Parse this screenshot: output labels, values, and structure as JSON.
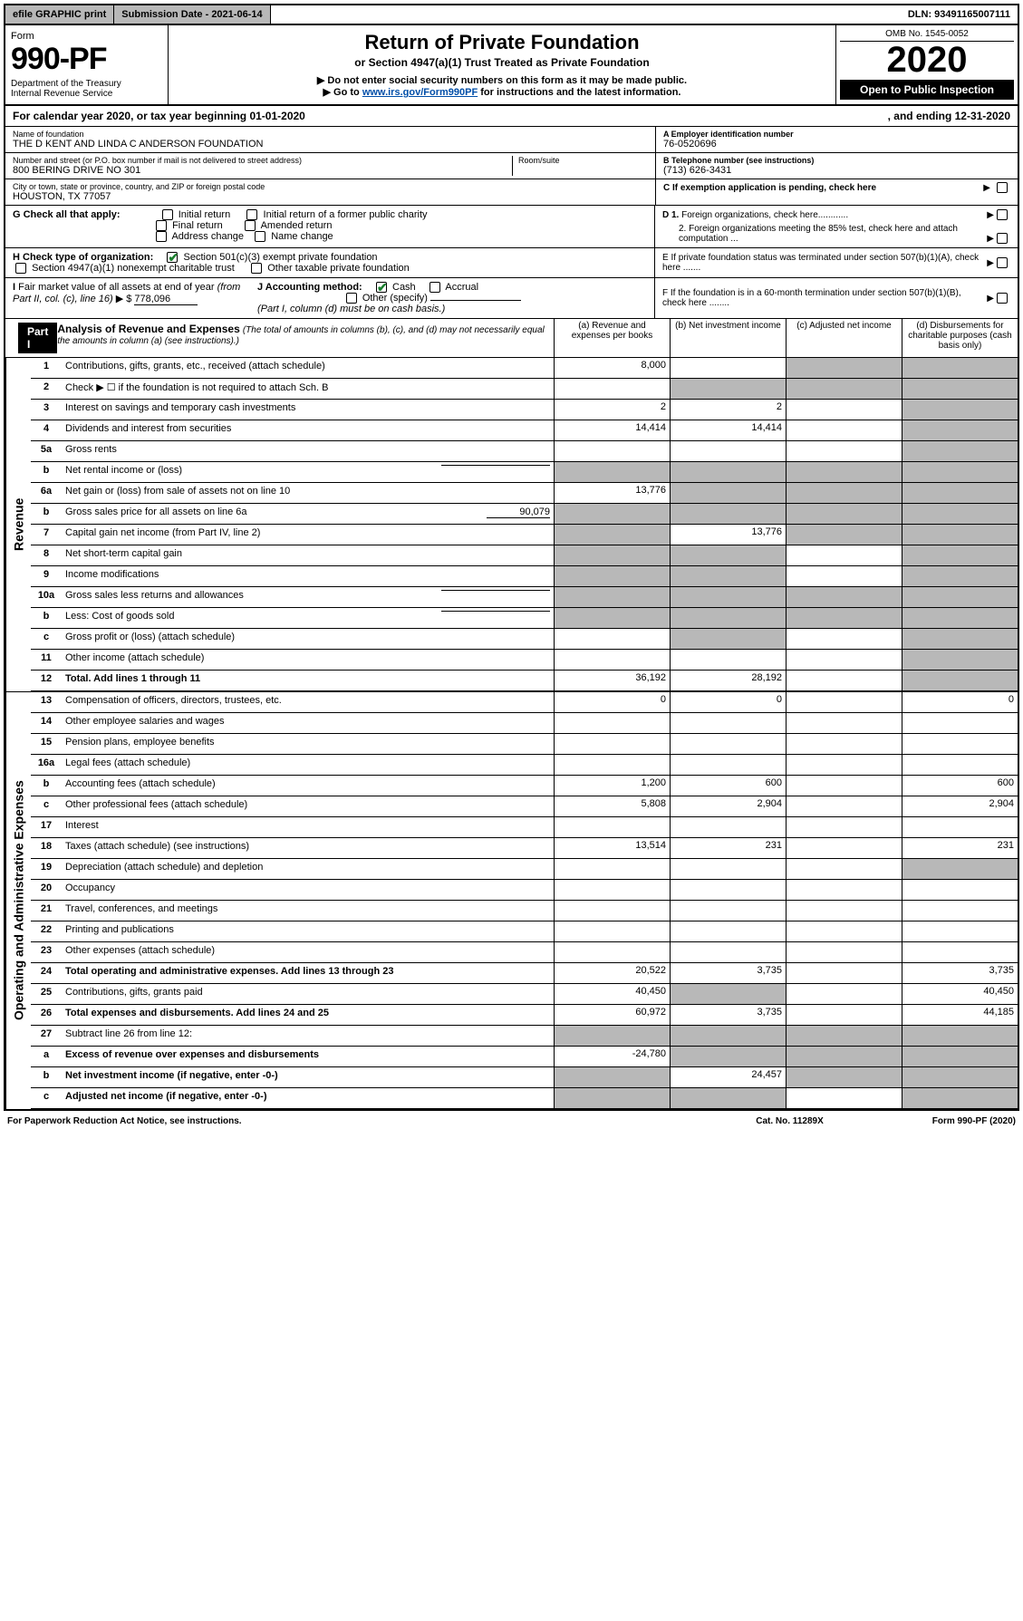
{
  "colors": {
    "black": "#000000",
    "gray_btn": "#b8b8b8",
    "link_blue": "#004ea8",
    "check_green": "#1a7f2e",
    "shade": "#b8b8b8"
  },
  "topbar": {
    "efile": "efile GRAPHIC print",
    "submission": "Submission Date - 2021-06-14",
    "dln": "DLN: 93491165007111"
  },
  "header": {
    "form_word": "Form",
    "form_num": "990-PF",
    "dept": "Department of the Treasury\nInternal Revenue Service",
    "title": "Return of Private Foundation",
    "subtitle": "or Section 4947(a)(1) Trust Treated as Private Foundation",
    "instr1": "▶ Do not enter social security numbers on this form as it may be made public.",
    "instr2_pre": "▶ Go to ",
    "instr2_link": "www.irs.gov/Form990PF",
    "instr2_post": " for instructions and the latest information.",
    "omb": "OMB No. 1545-0052",
    "year": "2020",
    "open_pub": "Open to Public Inspection"
  },
  "calendar": {
    "pre": "For calendar year 2020, or tax year beginning ",
    "begin": "01-01-2020",
    "mid": ", and ending ",
    "end": "12-31-2020"
  },
  "entity": {
    "name_label": "Name of foundation",
    "name": "THE D KENT AND LINDA C ANDERSON FOUNDATION",
    "addr_label": "Number and street (or P.O. box number if mail is not delivered to street address)",
    "addr": "800 BERING DRIVE NO 301",
    "room_label": "Room/suite",
    "city_label": "City or town, state or province, country, and ZIP or foreign postal code",
    "city": "HOUSTON, TX  77057",
    "a_label": "A Employer identification number",
    "a_val": "76-0520696",
    "b_label": "B Telephone number (see instructions)",
    "b_val": "(713) 626-3431",
    "c_label": "C If exemption application is pending, check here"
  },
  "checks": {
    "g_label": "G Check all that apply:",
    "g_opts": [
      "Initial return",
      "Initial return of a former public charity",
      "Final return",
      "Amended return",
      "Address change",
      "Name change"
    ],
    "h_label": "H Check type of organization:",
    "h1": "Section 501(c)(3) exempt private foundation",
    "h2": "Section 4947(a)(1) nonexempt charitable trust",
    "h3": "Other taxable private foundation",
    "i_label": "I Fair market value of all assets at end of year (from Part II, col. (c), line 16) ▶ $",
    "i_val": "778,096",
    "j_label": "J Accounting method:",
    "j_cash": "Cash",
    "j_accrual": "Accrual",
    "j_other": "Other (specify)",
    "j_note": "(Part I, column (d) must be on cash basis.)",
    "d1": "D 1. Foreign organizations, check here............",
    "d2": "2. Foreign organizations meeting the 85% test, check here and attach computation ...",
    "e": "E  If private foundation status was terminated under section 507(b)(1)(A), check here .......",
    "f": "F  If the foundation is in a 60-month termination under section 507(b)(1)(B), check here ........"
  },
  "part1": {
    "tag": "Part I",
    "title": "Analysis of Revenue and Expenses",
    "note": "(The total of amounts in columns (b), (c), and (d) may not necessarily equal the amounts in column (a) (see instructions).)",
    "cols": {
      "a": "(a)   Revenue and expenses per books",
      "b": "(b)  Net investment income",
      "c": "(c)  Adjusted net income",
      "d": "(d)  Disbursements for charitable purposes (cash basis only)"
    }
  },
  "side_labels": {
    "revenue": "Revenue",
    "expenses": "Operating and Administrative Expenses"
  },
  "rows": [
    {
      "n": "1",
      "lbl": "Contributions, gifts, grants, etc., received (attach schedule)",
      "a": "8,000",
      "b": "",
      "c_sh": true,
      "d_sh": true
    },
    {
      "n": "2",
      "lbl": "Check ▶ ☐ if the foundation is not required to attach Sch. B",
      "a": "",
      "b_sh": true,
      "c_sh": true,
      "d_sh": true,
      "allshade": true
    },
    {
      "n": "3",
      "lbl": "Interest on savings and temporary cash investments",
      "a": "2",
      "b": "2",
      "c": "",
      "d_sh": true
    },
    {
      "n": "4",
      "lbl": "Dividends and interest from securities",
      "a": "14,414",
      "b": "14,414",
      "c": "",
      "d_sh": true
    },
    {
      "n": "5a",
      "lbl": "Gross rents",
      "a": "",
      "b": "",
      "c": "",
      "d_sh": true
    },
    {
      "n": "b",
      "lbl": "Net rental income or (loss)",
      "a_sh": true,
      "b_sh": true,
      "c_sh": true,
      "d_sh": true,
      "inline_box": true
    },
    {
      "n": "6a",
      "lbl": "Net gain or (loss) from sale of assets not on line 10",
      "a": "13,776",
      "b_sh": true,
      "c_sh": true,
      "d_sh": true
    },
    {
      "n": "b",
      "lbl": "Gross sales price for all assets on line 6a",
      "inline_val": "90,079",
      "a_sh": true,
      "b_sh": true,
      "c_sh": true,
      "d_sh": true
    },
    {
      "n": "7",
      "lbl": "Capital gain net income (from Part IV, line 2)",
      "a_sh": true,
      "b": "13,776",
      "c_sh": true,
      "d_sh": true
    },
    {
      "n": "8",
      "lbl": "Net short-term capital gain",
      "a_sh": true,
      "b_sh": true,
      "c": "",
      "d_sh": true
    },
    {
      "n": "9",
      "lbl": "Income modifications",
      "a_sh": true,
      "b_sh": true,
      "c": "",
      "d_sh": true
    },
    {
      "n": "10a",
      "lbl": "Gross sales less returns and allowances",
      "a_sh": true,
      "b_sh": true,
      "c_sh": true,
      "d_sh": true,
      "inline_box": true
    },
    {
      "n": "b",
      "lbl": "Less: Cost of goods sold",
      "a_sh": true,
      "b_sh": true,
      "c_sh": true,
      "d_sh": true,
      "inline_box": true
    },
    {
      "n": "c",
      "lbl": "Gross profit or (loss) (attach schedule)",
      "a": "",
      "b_sh": true,
      "c": "",
      "d_sh": true
    },
    {
      "n": "11",
      "lbl": "Other income (attach schedule)",
      "a": "",
      "b": "",
      "c": "",
      "d_sh": true
    },
    {
      "n": "12",
      "lbl": "Total. Add lines 1 through 11",
      "bold": true,
      "a": "36,192",
      "b": "28,192",
      "c": "",
      "d_sh": true
    }
  ],
  "exp_rows": [
    {
      "n": "13",
      "lbl": "Compensation of officers, directors, trustees, etc.",
      "a": "0",
      "b": "0",
      "c": "",
      "d": "0"
    },
    {
      "n": "14",
      "lbl": "Other employee salaries and wages",
      "a": "",
      "b": "",
      "c": "",
      "d": ""
    },
    {
      "n": "15",
      "lbl": "Pension plans, employee benefits",
      "a": "",
      "b": "",
      "c": "",
      "d": ""
    },
    {
      "n": "16a",
      "lbl": "Legal fees (attach schedule)",
      "a": "",
      "b": "",
      "c": "",
      "d": ""
    },
    {
      "n": "b",
      "lbl": "Accounting fees (attach schedule)",
      "a": "1,200",
      "b": "600",
      "c": "",
      "d": "600"
    },
    {
      "n": "c",
      "lbl": "Other professional fees (attach schedule)",
      "a": "5,808",
      "b": "2,904",
      "c": "",
      "d": "2,904"
    },
    {
      "n": "17",
      "lbl": "Interest",
      "a": "",
      "b": "",
      "c": "",
      "d": ""
    },
    {
      "n": "18",
      "lbl": "Taxes (attach schedule) (see instructions)",
      "a": "13,514",
      "b": "231",
      "c": "",
      "d": "231"
    },
    {
      "n": "19",
      "lbl": "Depreciation (attach schedule) and depletion",
      "a": "",
      "b": "",
      "c": "",
      "d_sh": true
    },
    {
      "n": "20",
      "lbl": "Occupancy",
      "a": "",
      "b": "",
      "c": "",
      "d": ""
    },
    {
      "n": "21",
      "lbl": "Travel, conferences, and meetings",
      "a": "",
      "b": "",
      "c": "",
      "d": ""
    },
    {
      "n": "22",
      "lbl": "Printing and publications",
      "a": "",
      "b": "",
      "c": "",
      "d": ""
    },
    {
      "n": "23",
      "lbl": "Other expenses (attach schedule)",
      "a": "",
      "b": "",
      "c": "",
      "d": ""
    },
    {
      "n": "24",
      "lbl": "Total operating and administrative expenses. Add lines 13 through 23",
      "bold": true,
      "a": "20,522",
      "b": "3,735",
      "c": "",
      "d": "3,735"
    },
    {
      "n": "25",
      "lbl": "Contributions, gifts, grants paid",
      "a": "40,450",
      "b_sh": true,
      "c": "",
      "d": "40,450"
    },
    {
      "n": "26",
      "lbl": "Total expenses and disbursements. Add lines 24 and 25",
      "bold": true,
      "a": "60,972",
      "b": "3,735",
      "c": "",
      "d": "44,185"
    },
    {
      "n": "27",
      "lbl": "Subtract line 26 from line 12:",
      "a_sh": true,
      "b_sh": true,
      "c_sh": true,
      "d_sh": true
    },
    {
      "n": "a",
      "lbl": "Excess of revenue over expenses and disbursements",
      "bold": true,
      "a": "-24,780",
      "b_sh": true,
      "c_sh": true,
      "d_sh": true
    },
    {
      "n": "b",
      "lbl": "Net investment income (if negative, enter -0-)",
      "bold": true,
      "a_sh": true,
      "b": "24,457",
      "c_sh": true,
      "d_sh": true
    },
    {
      "n": "c",
      "lbl": "Adjusted net income (if negative, enter -0-)",
      "bold": true,
      "a_sh": true,
      "b_sh": true,
      "c": "",
      "d_sh": true
    }
  ],
  "footer": {
    "left": "For Paperwork Reduction Act Notice, see instructions.",
    "mid": "Cat. No. 11289X",
    "right": "Form 990-PF (2020)"
  }
}
